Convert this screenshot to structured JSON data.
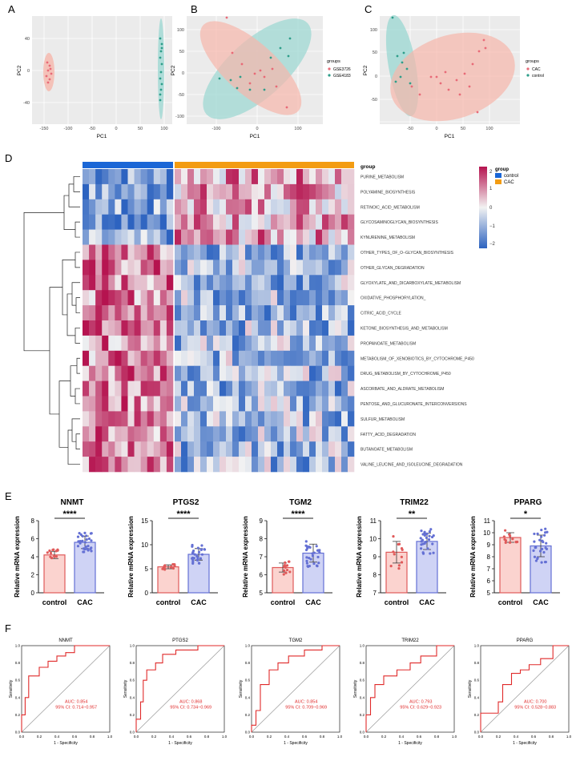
{
  "panel_labels": [
    "A",
    "B",
    "C",
    "D",
    "E",
    "F"
  ],
  "colors": {
    "pink": "#f08080",
    "pink_fill": "#f6b7ab",
    "teal": "#2e9e8a",
    "teal_fill": "#9fd8d3",
    "heat_high": "#b5134f",
    "heat_mid": "#f2f2f2",
    "heat_low": "#2d63c0",
    "bar_control_fill": "#fbd3cf",
    "bar_control_edge": "#e05a5a",
    "bar_cac_fill": "#cfd3f5",
    "bar_cac_edge": "#6470d4",
    "roc_line": "#e02a2a",
    "control_bar": "#1a66d6",
    "cac_bar": "#f39c12"
  },
  "pca": [
    {
      "panel": "A",
      "xlabel": "PC1",
      "ylabel": "PC2",
      "x_ticks": [
        "-150",
        "-100",
        "-50",
        "0",
        "50",
        "100"
      ],
      "y_ticks": [
        "40",
        "0",
        "-40"
      ],
      "legend": null
    },
    {
      "panel": "B",
      "xlabel": "PC1",
      "ylabel": "PC2",
      "x_ticks": [
        "-100",
        "0",
        "100"
      ],
      "y_ticks": [
        "100",
        "50",
        "0",
        "-50",
        "-100"
      ],
      "legend": {
        "title": "groups",
        "items": [
          "GSE3726",
          "GSE4183"
        ]
      }
    },
    {
      "panel": "C",
      "xlabel": "PC1",
      "ylabel": "PC2",
      "x_ticks": [
        "-50",
        "0",
        "50",
        "100"
      ],
      "y_ticks": [
        "100",
        "50",
        "0",
        "-50"
      ],
      "legend": {
        "title": "groups",
        "items": [
          "CAC",
          "control"
        ]
      }
    }
  ],
  "heatmap": {
    "title": "group",
    "legend_title": "group",
    "groups": [
      "control",
      "CAC"
    ],
    "scale_ticks": [
      "2",
      "1",
      "0",
      "−1",
      "−2"
    ],
    "rows": [
      "PURINE_METABOLISM",
      "POLYAMINE_BIOSYNTHESIS",
      "RETINOIC_ACID_METABOLISM",
      "GLYCOSAMINOGLYCAN_BIOSYNTHESIS",
      "KYNURENINE_METABOLISM",
      "OTHER_TYPES_OF_O−GLYCAN_BIOSYNTHESIS",
      "OTHER_GLYCAN_DEGRADATION",
      "GLYOXYLATE_AND_DICARBOXYLATE_METABOLISM",
      "OXIDATIVE_PHOSPHORYLATION_",
      "CITRIC_ACID_CYCLE",
      "KETONE_BIOSYNTHESIS_AND_METABOLISM",
      "PROPANOATE_METABOLISM",
      "METABOLISM_OF_XENOBIOTICS_BY_CYTOCHROME_P450",
      "DRUG_METABOLISM_BY_CYTOCHROME_P450",
      "ASCORBATE_AND_ALDRATE_METABOLISM",
      "PENTOSE_AND_GLUCURONATE_INTERCONVERSIONS",
      "SULFUR_METABOLISM",
      "FATTY_ACID_DEGRADATION",
      "BUTANOATE_METABOLISM",
      "VALINE_LEUCINE_AND_ISOLEUCINE_DEGRADATION"
    ]
  },
  "chart_data": [
    {
      "type": "bar",
      "title": "NNMT",
      "categories": [
        "control",
        "CAC"
      ],
      "values": [
        4.2,
        5.6
      ],
      "errors": [
        0.4,
        0.7
      ],
      "ylabel": "Relative mRNA expression",
      "ylim": [
        0,
        8
      ],
      "y_ticks": [
        0,
        2,
        4,
        6,
        8
      ],
      "significance": "****"
    },
    {
      "type": "bar",
      "title": "PTGS2",
      "categories": [
        "control",
        "CAC"
      ],
      "values": [
        5.4,
        8.0
      ],
      "errors": [
        0.4,
        1.2
      ],
      "ylabel": "Relative mRNA expression",
      "ylim": [
        0,
        15
      ],
      "y_ticks": [
        0,
        5,
        10,
        15
      ],
      "significance": "****"
    },
    {
      "type": "bar",
      "title": "TGM2",
      "categories": [
        "control",
        "CAC"
      ],
      "values": [
        6.4,
        7.2
      ],
      "errors": [
        0.25,
        0.5
      ],
      "ylabel": "Relative mRNA expression",
      "ylim": [
        5,
        9
      ],
      "y_ticks": [
        5,
        6,
        7,
        8,
        9
      ],
      "significance": "****"
    },
    {
      "type": "bar",
      "title": "TRIM22",
      "categories": [
        "control",
        "CAC"
      ],
      "values": [
        9.25,
        9.85
      ],
      "errors": [
        0.6,
        0.45
      ],
      "ylabel": "Relative mRNA expression",
      "ylim": [
        7,
        11
      ],
      "y_ticks": [
        7,
        8,
        9,
        10,
        11
      ],
      "significance": "**"
    },
    {
      "type": "bar",
      "title": "PPARG",
      "categories": [
        "control",
        "CAC"
      ],
      "values": [
        9.6,
        8.9
      ],
      "errors": [
        0.4,
        0.9
      ],
      "ylabel": "Relative mRNA expression",
      "ylim": [
        5,
        11
      ],
      "y_ticks": [
        5,
        6,
        7,
        8,
        9,
        10,
        11
      ],
      "significance": "*"
    },
    {
      "type": "line",
      "title": "NNMT",
      "xlabel": "1 - Specificity",
      "ylabel": "Sensitivity",
      "auc_text": "AUC: 0.854",
      "ci_text": "95% CI: 0.714−0.957",
      "ticks": [
        "0.0",
        "0.2",
        "0.4",
        "0.6",
        "0.8",
        "1.0"
      ],
      "x": [
        0,
        0,
        0.04,
        0.04,
        0.08,
        0.08,
        0.2,
        0.2,
        0.3,
        0.3,
        0.4,
        0.4,
        0.5,
        0.5,
        0.6,
        0.6,
        0.75,
        0.75,
        1
      ],
      "y": [
        0,
        0.2,
        0.2,
        0.4,
        0.4,
        0.65,
        0.65,
        0.75,
        0.75,
        0.82,
        0.82,
        0.88,
        0.88,
        0.92,
        0.92,
        1,
        1,
        1,
        1
      ]
    },
    {
      "type": "line",
      "title": "PTGS2",
      "xlabel": "1 - Specificity",
      "ylabel": "Sensitivity",
      "auc_text": "AUC: 0.868",
      "ci_text": "95% CI: 0.734−0.969",
      "ticks": [
        "0.0",
        "0.2",
        "0.4",
        "0.6",
        "0.8",
        "1.0"
      ],
      "x": [
        0,
        0,
        0.05,
        0.05,
        0.08,
        0.08,
        0.12,
        0.12,
        0.22,
        0.22,
        0.3,
        0.3,
        0.45,
        0.45,
        0.7,
        0.7,
        1
      ],
      "y": [
        0,
        0.15,
        0.15,
        0.35,
        0.35,
        0.6,
        0.6,
        0.72,
        0.72,
        0.8,
        0.8,
        0.9,
        0.9,
        0.95,
        0.95,
        1,
        1
      ]
    },
    {
      "type": "line",
      "title": "TGM2",
      "xlabel": "1 - Specificity",
      "ylabel": "Sensitivity",
      "auc_text": "AUC: 0.854",
      "ci_text": "95% CI: 0.709−0.969",
      "ticks": [
        "0.0",
        "0.2",
        "0.4",
        "0.6",
        "0.8",
        "1.0"
      ],
      "x": [
        0,
        0,
        0.05,
        0.05,
        0.1,
        0.1,
        0.2,
        0.2,
        0.3,
        0.3,
        0.42,
        0.42,
        0.6,
        0.6,
        0.8,
        0.8,
        1
      ],
      "y": [
        0,
        0.08,
        0.08,
        0.25,
        0.25,
        0.55,
        0.55,
        0.72,
        0.72,
        0.8,
        0.8,
        0.88,
        0.88,
        0.95,
        0.95,
        1,
        1
      ]
    },
    {
      "type": "line",
      "title": "TRIM22",
      "xlabel": "1 - Specificity",
      "ylabel": "Sensitivity",
      "auc_text": "AUC: 0.793",
      "ci_text": "95% CI: 0.629−0.923",
      "ticks": [
        "0.0",
        "0.2",
        "0.4",
        "0.6",
        "0.8",
        "1.0"
      ],
      "x": [
        0,
        0,
        0.05,
        0.05,
        0.1,
        0.1,
        0.2,
        0.2,
        0.35,
        0.35,
        0.5,
        0.5,
        0.62,
        0.62,
        0.8,
        0.8,
        1
      ],
      "y": [
        0,
        0.2,
        0.2,
        0.4,
        0.4,
        0.55,
        0.55,
        0.65,
        0.65,
        0.72,
        0.72,
        0.8,
        0.8,
        0.88,
        0.88,
        1,
        1
      ]
    },
    {
      "type": "line",
      "title": "PPARG",
      "xlabel": "1 - Specificity",
      "ylabel": "Sensitivity",
      "auc_text": "AUC: 0.700",
      "ci_text": "95% CI: 0.528−0.883",
      "ticks": [
        "0.0",
        "0.2",
        "0.4",
        "0.6",
        "0.8",
        "1.0"
      ],
      "x": [
        0,
        0,
        0.2,
        0.2,
        0.25,
        0.25,
        0.35,
        0.35,
        0.45,
        0.45,
        0.55,
        0.55,
        0.68,
        0.68,
        0.82,
        0.82,
        1
      ],
      "y": [
        0,
        0.22,
        0.22,
        0.35,
        0.35,
        0.55,
        0.55,
        0.68,
        0.68,
        0.72,
        0.72,
        0.78,
        0.78,
        0.85,
        0.85,
        1,
        1
      ]
    }
  ]
}
